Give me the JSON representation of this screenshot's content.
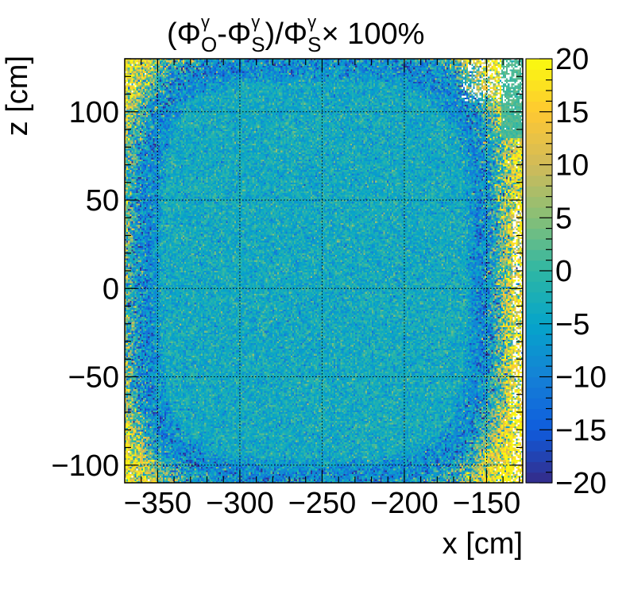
{
  "chart_data": {
    "type": "heatmap",
    "title": {
      "open": "(",
      "phi_o": "Φ",
      "gamma_o": "γ",
      "sub_o": "O",
      "minus": "-",
      "phi_s": "Φ",
      "gamma_s": "γ",
      "sub_s": "S",
      "close_div": ")/",
      "phi_s2": "Φ",
      "gamma_s2": "γ",
      "sub_s2": "S",
      "tail": "× 100%"
    },
    "xlabel": "x [cm]",
    "ylabel": "z [cm]",
    "xlim": [
      -370,
      -128
    ],
    "ylim": [
      -110,
      130
    ],
    "zlim": [
      -20,
      20
    ],
    "x_ticks": [
      {
        "value": -350,
        "label": "−350"
      },
      {
        "value": -300,
        "label": "−300"
      },
      {
        "value": -250,
        "label": "−250"
      },
      {
        "value": -200,
        "label": "−200"
      },
      {
        "value": -150,
        "label": "−150"
      }
    ],
    "y_ticks": [
      {
        "value": -100,
        "label": "−100"
      },
      {
        "value": -50,
        "label": "−50"
      },
      {
        "value": 0,
        "label": "0"
      },
      {
        "value": 50,
        "label": "50"
      },
      {
        "value": 100,
        "label": "100"
      }
    ],
    "z_ticks": [
      {
        "value": 20,
        "label": "20"
      },
      {
        "value": 15,
        "label": "15"
      },
      {
        "value": 10,
        "label": "10"
      },
      {
        "value": 5,
        "label": "5"
      },
      {
        "value": 0,
        "label": "0"
      },
      {
        "value": -5,
        "label": "−5"
      },
      {
        "value": -10,
        "label": "−10"
      },
      {
        "value": -15,
        "label": "−15"
      },
      {
        "value": -20,
        "label": "−20"
      }
    ],
    "grid": true,
    "colormap": [
      "#352a87",
      "#0f5cdd",
      "#1481d6",
      "#06a4ca",
      "#2eb7a4",
      "#87bf77",
      "#d1bb59",
      "#fec832",
      "#f9fb0e"
    ],
    "distribution": "central region near 0 to -5 %, edges saturated toward +20 % with a ring of -10 to -20 %, empty bins at the far top-right"
  }
}
